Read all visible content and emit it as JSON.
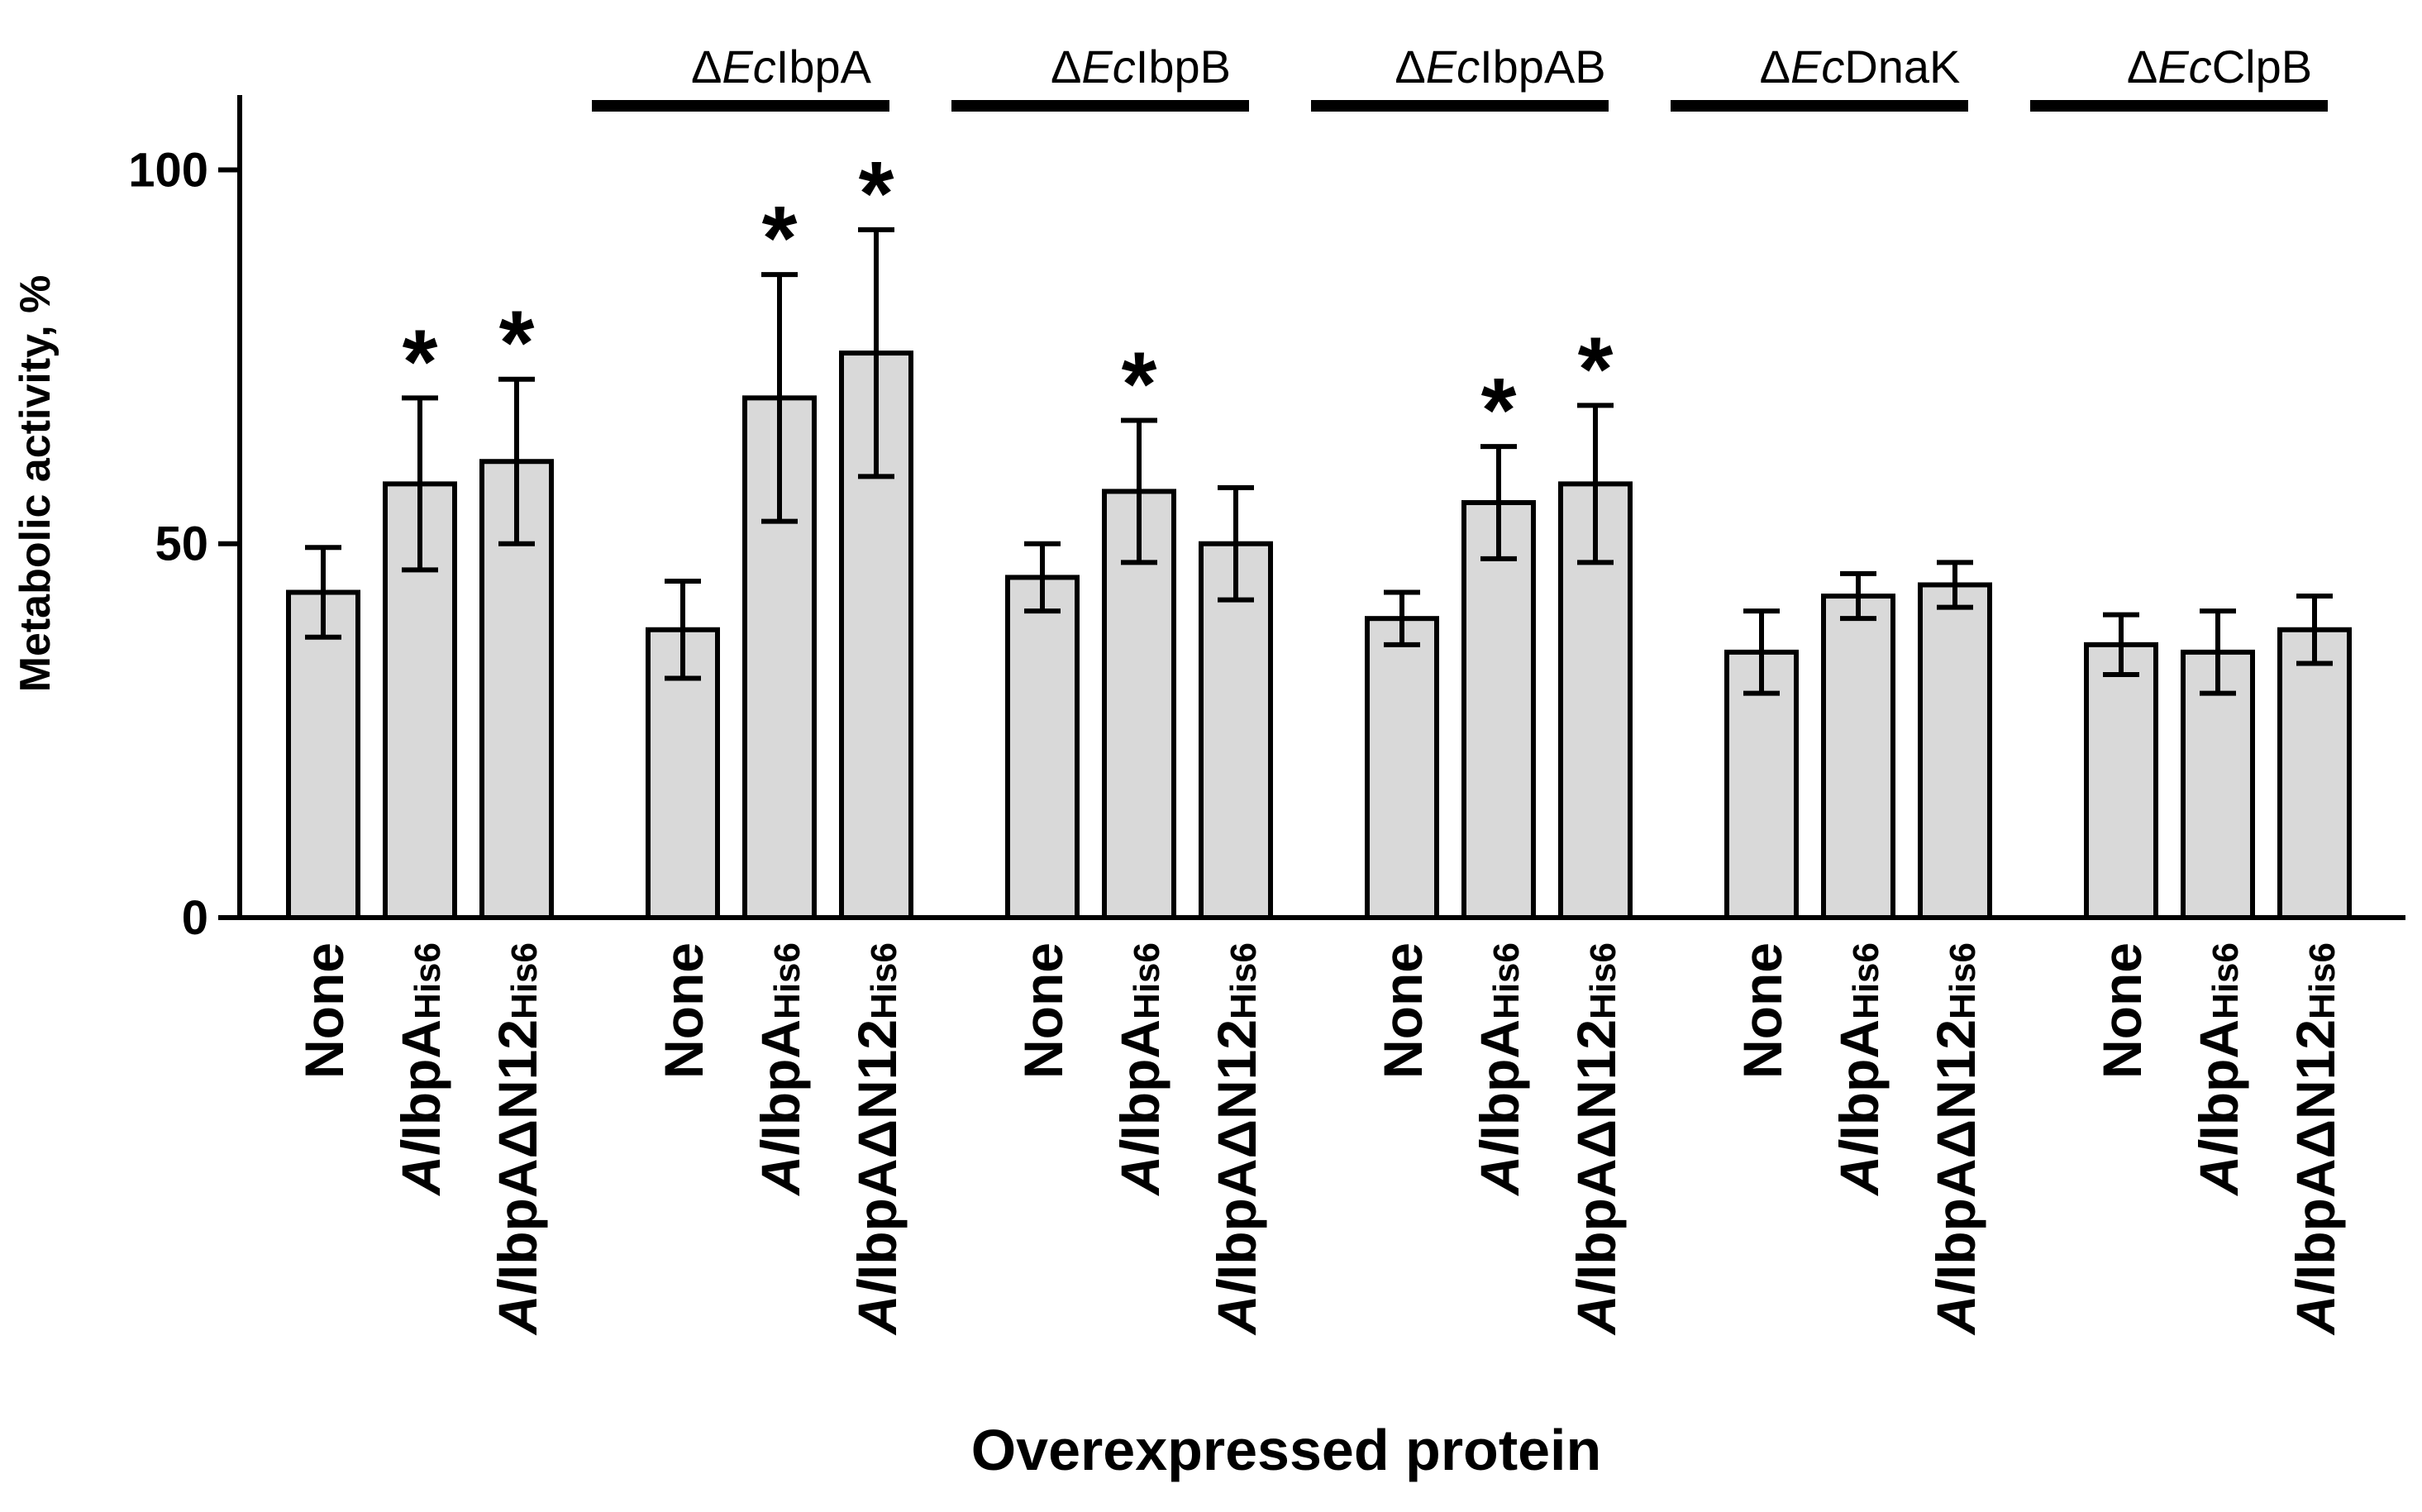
{
  "chart_data": {
    "type": "bar",
    "title": "",
    "xlabel": "Overexpressed protein",
    "ylabel": "Metabolic activity, %",
    "ylim": [
      0,
      110
    ],
    "yticks": [
      0,
      50,
      100
    ],
    "colors": {
      "bar_fill": "#d9d9d9",
      "bar_stroke": "#000000",
      "axis": "#000000"
    },
    "categories": [
      {
        "main": "None",
        "sub": ""
      },
      {
        "main": "AlIbpA",
        "sub": "His6"
      },
      {
        "main": "AlIbpAΔN12",
        "sub": "His6"
      }
    ],
    "groups": [
      {
        "label": "",
        "values": [
          43.5,
          58,
          61
        ],
        "errors": [
          6,
          11.5,
          11
        ],
        "significant": [
          false,
          true,
          true
        ]
      },
      {
        "label": "ΔEcIbpA",
        "values": [
          38.5,
          69.5,
          75.5
        ],
        "errors": [
          6.5,
          16.5,
          16.5
        ],
        "significant": [
          false,
          true,
          true
        ]
      },
      {
        "label": "ΔEcIbpB",
        "values": [
          45.5,
          57,
          50
        ],
        "errors": [
          4.5,
          9.5,
          7.5
        ],
        "significant": [
          false,
          true,
          false
        ]
      },
      {
        "label": "ΔEcIbpAB",
        "values": [
          40,
          55.5,
          58
        ],
        "errors": [
          3.5,
          7.5,
          10.5
        ],
        "significant": [
          false,
          true,
          true
        ]
      },
      {
        "label": "ΔEcDnaK",
        "values": [
          35.5,
          43,
          44.5
        ],
        "errors": [
          5.5,
          3,
          3
        ],
        "significant": [
          false,
          false,
          false
        ]
      },
      {
        "label": "ΔEcClpB",
        "values": [
          36.5,
          35.5,
          38.5
        ],
        "errors": [
          4,
          5.5,
          4.5
        ],
        "significant": [
          false,
          false,
          false
        ]
      }
    ],
    "significance_marker": "*"
  }
}
